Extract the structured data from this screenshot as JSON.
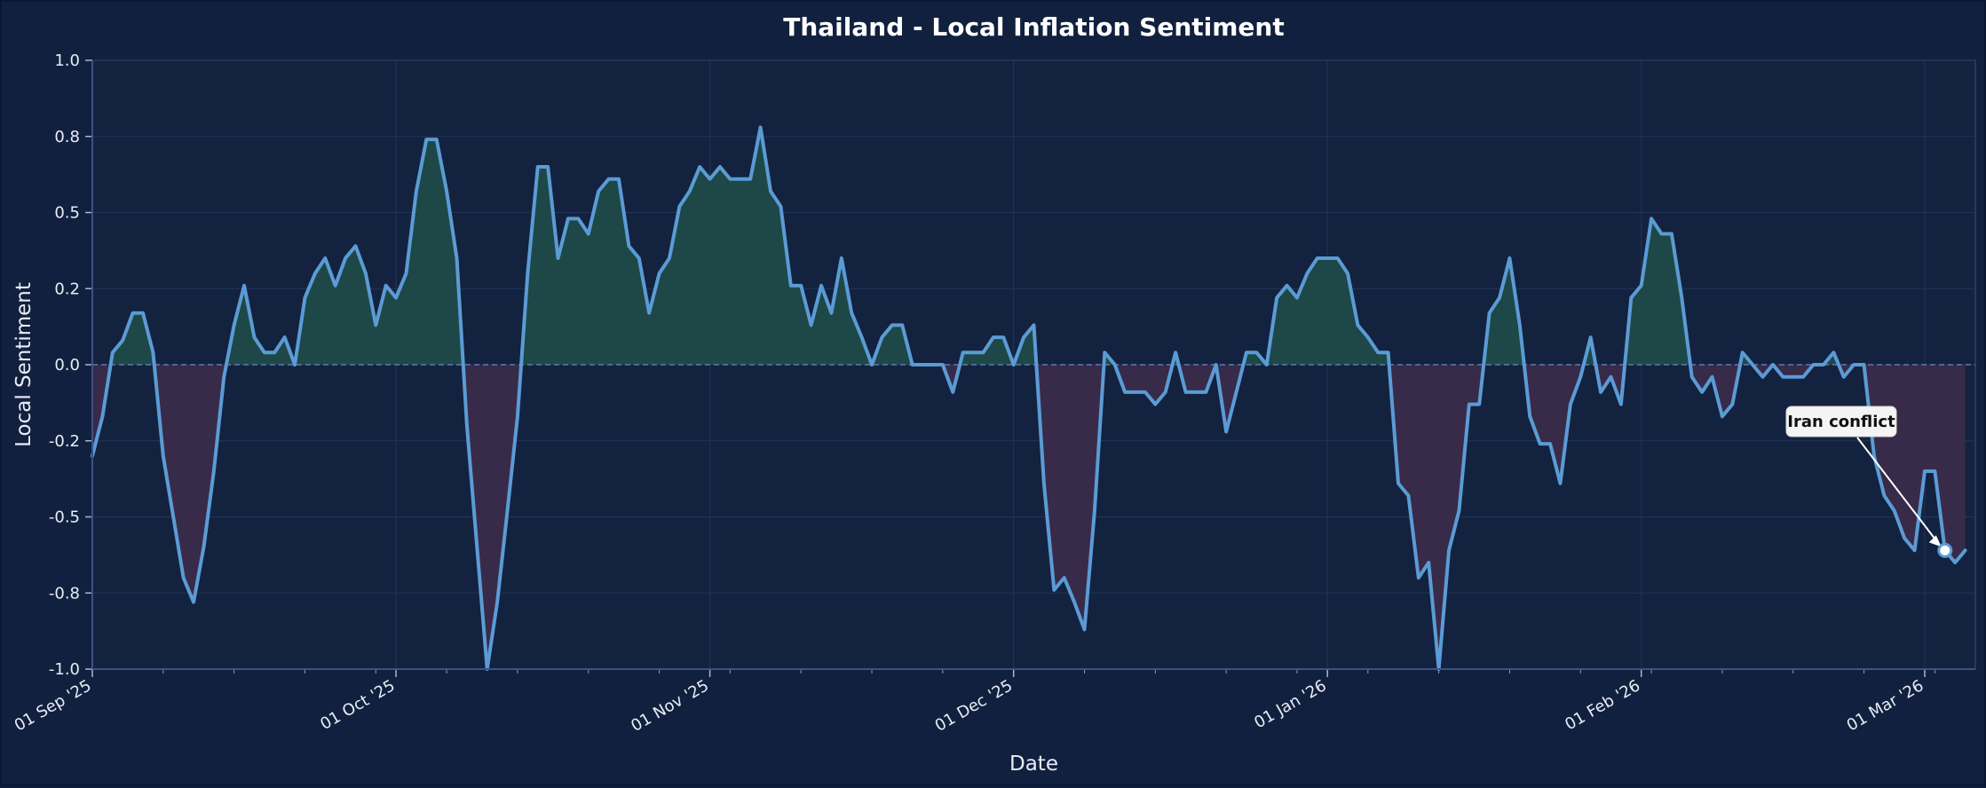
{
  "chart_data": {
    "type": "area",
    "title": "Thailand - Local Inflation Sentiment",
    "xlabel": "Date",
    "ylabel": "Local Sentiment",
    "x_range": [
      "2025-09-01",
      "2026-03-06"
    ],
    "ylim": [
      -1.0,
      1.0
    ],
    "y_ticks": [
      -1.0,
      -0.75,
      -0.5,
      -0.25,
      0.0,
      0.25,
      0.5,
      0.75,
      1.0
    ],
    "y_tick_labels": [
      "-1.0",
      "-0.8",
      "-0.5",
      "-0.2",
      "0.0",
      "0.2",
      "0.5",
      "0.8",
      "1.0"
    ],
    "x_ticks": [
      "2025-09-01",
      "2025-10-01",
      "2025-11-01",
      "2025-12-01",
      "2026-01-01",
      "2026-02-01",
      "2026-03-01"
    ],
    "x_tick_labels": [
      "01 Sep '25",
      "01 Oct '25",
      "01 Nov '25",
      "01 Dec '25",
      "01 Jan '26",
      "01 Feb '26",
      "01 Mar '26"
    ],
    "grid": true,
    "colors": {
      "background": "#12203f",
      "plot_background": "#13223f",
      "line": "#5b9bd5",
      "positive_fill": "#1f4a48",
      "negative_fill": "#3a2b4a",
      "grid": "#233458",
      "text": "#e8edf5",
      "zero_line": "#5d7ab0"
    },
    "series": [
      {
        "values": [
          [
            "2025-09-01",
            -0.3
          ],
          [
            "2025-09-02",
            -0.17
          ],
          [
            "2025-09-03",
            0.04
          ],
          [
            "2025-09-04",
            0.08
          ],
          [
            "2025-09-05",
            0.17
          ],
          [
            "2025-09-06",
            0.17
          ],
          [
            "2025-09-07",
            0.04
          ],
          [
            "2025-09-08",
            -0.3
          ],
          [
            "2025-09-09",
            -0.5
          ],
          [
            "2025-09-10",
            -0.7
          ],
          [
            "2025-09-11",
            -0.78
          ],
          [
            "2025-09-12",
            -0.6
          ],
          [
            "2025-09-13",
            -0.35
          ],
          [
            "2025-09-14",
            -0.04
          ],
          [
            "2025-09-15",
            0.13
          ],
          [
            "2025-09-16",
            0.26
          ],
          [
            "2025-09-17",
            0.09
          ],
          [
            "2025-09-18",
            0.04
          ],
          [
            "2025-09-19",
            0.04
          ],
          [
            "2025-09-20",
            0.09
          ],
          [
            "2025-09-21",
            0.0
          ],
          [
            "2025-09-22",
            0.22
          ],
          [
            "2025-09-23",
            0.3
          ],
          [
            "2025-09-24",
            0.35
          ],
          [
            "2025-09-25",
            0.26
          ],
          [
            "2025-09-26",
            0.35
          ],
          [
            "2025-09-27",
            0.39
          ],
          [
            "2025-09-28",
            0.3
          ],
          [
            "2025-09-29",
            0.13
          ],
          [
            "2025-09-30",
            0.26
          ],
          [
            "2025-10-01",
            0.22
          ],
          [
            "2025-10-02",
            0.3
          ],
          [
            "2025-10-03",
            0.57
          ],
          [
            "2025-10-04",
            0.74
          ],
          [
            "2025-10-05",
            0.74
          ],
          [
            "2025-10-06",
            0.57
          ],
          [
            "2025-10-07",
            0.35
          ],
          [
            "2025-10-08",
            -0.2
          ],
          [
            "2025-10-09",
            -0.6
          ],
          [
            "2025-10-10",
            -1.0
          ],
          [
            "2025-10-11",
            -0.78
          ],
          [
            "2025-10-12",
            -0.48
          ],
          [
            "2025-10-13",
            -0.17
          ],
          [
            "2025-10-14",
            0.3
          ],
          [
            "2025-10-15",
            0.65
          ],
          [
            "2025-10-16",
            0.65
          ],
          [
            "2025-10-17",
            0.35
          ],
          [
            "2025-10-18",
            0.48
          ],
          [
            "2025-10-19",
            0.48
          ],
          [
            "2025-10-20",
            0.43
          ],
          [
            "2025-10-21",
            0.57
          ],
          [
            "2025-10-22",
            0.61
          ],
          [
            "2025-10-23",
            0.61
          ],
          [
            "2025-10-24",
            0.39
          ],
          [
            "2025-10-25",
            0.35
          ],
          [
            "2025-10-26",
            0.17
          ],
          [
            "2025-10-27",
            0.3
          ],
          [
            "2025-10-28",
            0.35
          ],
          [
            "2025-10-29",
            0.52
          ],
          [
            "2025-10-30",
            0.57
          ],
          [
            "2025-10-31",
            0.65
          ],
          [
            "2025-11-01",
            0.61
          ],
          [
            "2025-11-02",
            0.65
          ],
          [
            "2025-11-03",
            0.61
          ],
          [
            "2025-11-04",
            0.61
          ],
          [
            "2025-11-05",
            0.61
          ],
          [
            "2025-11-06",
            0.78
          ],
          [
            "2025-11-07",
            0.57
          ],
          [
            "2025-11-08",
            0.52
          ],
          [
            "2025-11-09",
            0.26
          ],
          [
            "2025-11-10",
            0.26
          ],
          [
            "2025-11-11",
            0.13
          ],
          [
            "2025-11-12",
            0.26
          ],
          [
            "2025-11-13",
            0.17
          ],
          [
            "2025-11-14",
            0.35
          ],
          [
            "2025-11-15",
            0.17
          ],
          [
            "2025-11-16",
            0.09
          ],
          [
            "2025-11-17",
            0.0
          ],
          [
            "2025-11-18",
            0.09
          ],
          [
            "2025-11-19",
            0.13
          ],
          [
            "2025-11-20",
            0.13
          ],
          [
            "2025-11-21",
            0.0
          ],
          [
            "2025-11-22",
            0.0
          ],
          [
            "2025-11-23",
            0.0
          ],
          [
            "2025-11-24",
            0.0
          ],
          [
            "2025-11-25",
            -0.09
          ],
          [
            "2025-11-26",
            0.04
          ],
          [
            "2025-11-27",
            0.04
          ],
          [
            "2025-11-28",
            0.04
          ],
          [
            "2025-11-29",
            0.09
          ],
          [
            "2025-11-30",
            0.09
          ],
          [
            "2025-12-01",
            0.0
          ],
          [
            "2025-12-02",
            0.09
          ],
          [
            "2025-12-03",
            0.13
          ],
          [
            "2025-12-04",
            -0.39
          ],
          [
            "2025-12-05",
            -0.74
          ],
          [
            "2025-12-06",
            -0.7
          ],
          [
            "2025-12-07",
            -0.78
          ],
          [
            "2025-12-08",
            -0.87
          ],
          [
            "2025-12-09",
            -0.48
          ],
          [
            "2025-12-10",
            0.04
          ],
          [
            "2025-12-11",
            0.0
          ],
          [
            "2025-12-12",
            -0.09
          ],
          [
            "2025-12-13",
            -0.09
          ],
          [
            "2025-12-14",
            -0.09
          ],
          [
            "2025-12-15",
            -0.13
          ],
          [
            "2025-12-16",
            -0.09
          ],
          [
            "2025-12-17",
            0.04
          ],
          [
            "2025-12-18",
            -0.09
          ],
          [
            "2025-12-19",
            -0.09
          ],
          [
            "2025-12-20",
            -0.09
          ],
          [
            "2025-12-21",
            0.0
          ],
          [
            "2025-12-22",
            -0.22
          ],
          [
            "2025-12-23",
            -0.09
          ],
          [
            "2025-12-24",
            0.04
          ],
          [
            "2025-12-25",
            0.04
          ],
          [
            "2025-12-26",
            0.0
          ],
          [
            "2025-12-27",
            0.22
          ],
          [
            "2025-12-28",
            0.26
          ],
          [
            "2025-12-29",
            0.22
          ],
          [
            "2025-12-30",
            0.3
          ],
          [
            "2025-12-31",
            0.35
          ],
          [
            "2026-01-01",
            0.35
          ],
          [
            "2026-01-02",
            0.35
          ],
          [
            "2026-01-03",
            0.3
          ],
          [
            "2026-01-04",
            0.13
          ],
          [
            "2026-01-05",
            0.09
          ],
          [
            "2026-01-06",
            0.04
          ],
          [
            "2026-01-07",
            0.04
          ],
          [
            "2026-01-08",
            -0.39
          ],
          [
            "2026-01-09",
            -0.43
          ],
          [
            "2026-01-10",
            -0.7
          ],
          [
            "2026-01-11",
            -0.65
          ],
          [
            "2026-01-12",
            -1.0
          ],
          [
            "2026-01-13",
            -0.61
          ],
          [
            "2026-01-14",
            -0.48
          ],
          [
            "2026-01-15",
            -0.13
          ],
          [
            "2026-01-16",
            -0.13
          ],
          [
            "2026-01-17",
            0.17
          ],
          [
            "2026-01-18",
            0.22
          ],
          [
            "2026-01-19",
            0.35
          ],
          [
            "2026-01-20",
            0.13
          ],
          [
            "2026-01-21",
            -0.17
          ],
          [
            "2026-01-22",
            -0.26
          ],
          [
            "2026-01-23",
            -0.26
          ],
          [
            "2026-01-24",
            -0.39
          ],
          [
            "2026-01-25",
            -0.13
          ],
          [
            "2026-01-26",
            -0.04
          ],
          [
            "2026-01-27",
            0.09
          ],
          [
            "2026-01-28",
            -0.09
          ],
          [
            "2026-01-29",
            -0.04
          ],
          [
            "2026-01-30",
            -0.13
          ],
          [
            "2026-01-31",
            0.22
          ],
          [
            "2026-02-01",
            0.26
          ],
          [
            "2026-02-02",
            0.48
          ],
          [
            "2026-02-03",
            0.43
          ],
          [
            "2026-02-04",
            0.43
          ],
          [
            "2026-02-05",
            0.22
          ],
          [
            "2026-02-06",
            -0.04
          ],
          [
            "2026-02-07",
            -0.09
          ],
          [
            "2026-02-08",
            -0.04
          ],
          [
            "2026-02-09",
            -0.17
          ],
          [
            "2026-02-10",
            -0.13
          ],
          [
            "2026-02-11",
            0.04
          ],
          [
            "2026-02-12",
            0.0
          ],
          [
            "2026-02-13",
            -0.04
          ],
          [
            "2026-02-14",
            0.0
          ],
          [
            "2026-02-15",
            -0.04
          ],
          [
            "2026-02-16",
            -0.04
          ],
          [
            "2026-02-17",
            -0.04
          ],
          [
            "2026-02-18",
            0.0
          ],
          [
            "2026-02-19",
            0.0
          ],
          [
            "2026-02-20",
            0.04
          ],
          [
            "2026-02-21",
            -0.04
          ],
          [
            "2026-02-22",
            0.0
          ],
          [
            "2026-02-23",
            0.0
          ],
          [
            "2026-02-24",
            -0.3
          ],
          [
            "2026-02-25",
            -0.43
          ],
          [
            "2026-02-26",
            -0.48
          ],
          [
            "2026-02-27",
            -0.57
          ],
          [
            "2026-02-28",
            -0.61
          ],
          [
            "2026-03-01",
            -0.35
          ],
          [
            "2026-03-02",
            -0.35
          ],
          [
            "2026-03-03",
            -0.61
          ],
          [
            "2026-03-04",
            -0.65
          ],
          [
            "2026-03-05",
            -0.61
          ]
        ]
      }
    ],
    "annotation": {
      "text": "Iran conflict",
      "x": "2026-03-03",
      "y": -0.61
    }
  }
}
